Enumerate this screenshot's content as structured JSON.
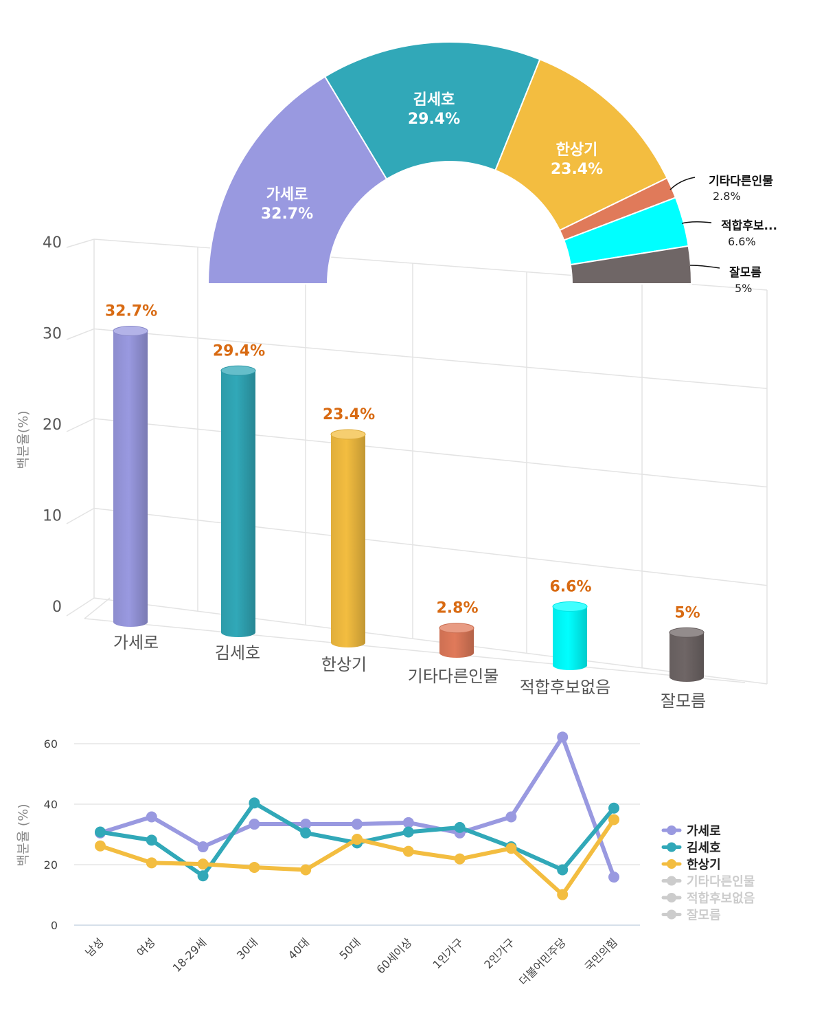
{
  "chart_data": [
    {
      "type": "pie",
      "variant": "semi-donut",
      "slices": [
        {
          "label": "가세로",
          "value": 32.7,
          "display": "32.7%",
          "color": "#9999E0"
        },
        {
          "label": "김세호",
          "value": 29.4,
          "display": "29.4%",
          "color": "#31A8B8"
        },
        {
          "label": "한상기",
          "value": 23.4,
          "display": "23.4%",
          "color": "#F3BD40"
        },
        {
          "label": "기타다른인물",
          "value": 2.8,
          "display": "2.8%",
          "color": "#E07A5A"
        },
        {
          "label": "적합후보...",
          "value": 6.6,
          "display": "6.6%",
          "color": "#00FFFF"
        },
        {
          "label": "잘모름",
          "value": 5,
          "display": "5%",
          "color": "#6F6666"
        }
      ]
    },
    {
      "type": "bar",
      "variant": "3d-cylinder",
      "categories": [
        "가세로",
        "김세호",
        "한상기",
        "기타다른인물",
        "적합후보없음",
        "잘모름"
      ],
      "values": [
        32.7,
        29.4,
        23.4,
        2.8,
        6.6,
        5
      ],
      "value_labels": [
        "32.7%",
        "29.4%",
        "23.4%",
        "2.8%",
        "6.6%",
        "5%"
      ],
      "colors": [
        "#9999E0",
        "#31A8B8",
        "#F3BD40",
        "#E07A5A",
        "#00FFFF",
        "#6F6666"
      ],
      "ylabel": "백분율(%)",
      "ylim": [
        0,
        40
      ],
      "yticks": [
        "0",
        "10",
        "20",
        "30",
        "40"
      ],
      "grid": true
    },
    {
      "type": "line",
      "categories": [
        "남성",
        "여성",
        "18-29세",
        "30대",
        "40대",
        "50대",
        "60세이상",
        "1인가구",
        "2인가구",
        "더불어민주당",
        "국민의힘"
      ],
      "series": [
        {
          "name": "가세로",
          "color": "#9999E0",
          "values": [
            30.5,
            35.8,
            25.9,
            33.4,
            33.4,
            33.4,
            33.9,
            30.5,
            35.8,
            62.2,
            15.9
          ]
        },
        {
          "name": "김세호",
          "color": "#31A8B8",
          "values": [
            30.8,
            28.1,
            16.3,
            40.4,
            30.5,
            27.2,
            30.8,
            32.3,
            25.9,
            18.3,
            38.7
          ]
        },
        {
          "name": "한상기",
          "color": "#F3BD40",
          "values": [
            26.2,
            20.6,
            20.2,
            19.1,
            18.3,
            28.4,
            24.4,
            21.9,
            25.4,
            10.1,
            34.9
          ]
        }
      ],
      "legend": [
        {
          "name": "가세로",
          "color": "#9999E0",
          "active": true
        },
        {
          "name": "김세호",
          "color": "#31A8B8",
          "active": true
        },
        {
          "name": "한상기",
          "color": "#F3BD40",
          "active": true
        },
        {
          "name": "기타다른인물",
          "color": "#CCCCCC",
          "active": false
        },
        {
          "name": "적합후보없음",
          "color": "#CCCCCC",
          "active": false
        },
        {
          "name": "잘모름",
          "color": "#CCCCCC",
          "active": false
        }
      ],
      "legend_position": "right",
      "ylabel": "백분율 (%)",
      "ylim": [
        0,
        60
      ],
      "yticks": [
        "0",
        "20",
        "40",
        "60"
      ],
      "grid": true
    }
  ]
}
